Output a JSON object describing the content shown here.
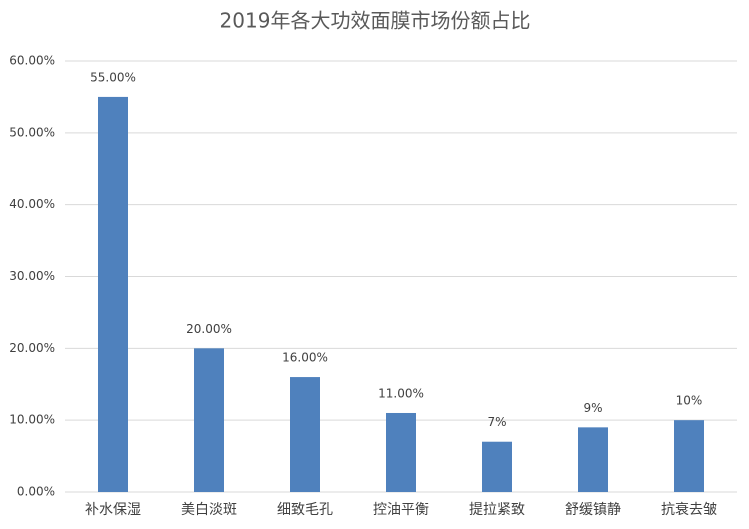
{
  "chart_data": {
    "type": "bar",
    "title": "2019年各大功效面膜市场份额占比",
    "categories": [
      "补水保湿",
      "美白淡斑",
      "细致毛孔",
      "控油平衡",
      "提拉紧致",
      "舒缓镇静",
      "抗衰去皱"
    ],
    "values": [
      55,
      20,
      16,
      11,
      7,
      9,
      10
    ],
    "value_labels": [
      "55.00%",
      "20.00%",
      "16.00%",
      "11.00%",
      "7%",
      "9%",
      "10%"
    ],
    "color": "#4f81bd",
    "ylim": [
      0,
      60
    ],
    "yticks": [
      {
        "value": 0,
        "label": "0.00%"
      },
      {
        "value": 10,
        "label": "10.00%"
      },
      {
        "value": 20,
        "label": "20.00%"
      },
      {
        "value": 30,
        "label": "30.00%"
      },
      {
        "value": 40,
        "label": "40.00%"
      },
      {
        "value": 50,
        "label": "50.00%"
      },
      {
        "value": 60,
        "label": "60.00%"
      }
    ],
    "grid": true
  }
}
